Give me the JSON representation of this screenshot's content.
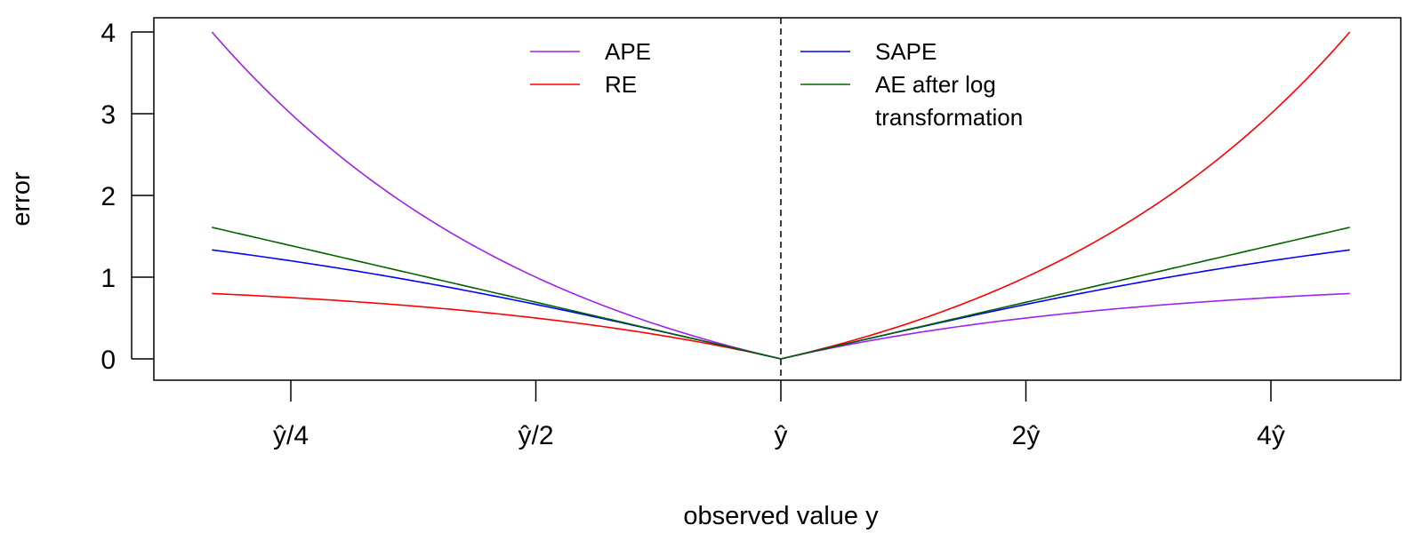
{
  "chart_data": {
    "type": "line",
    "xlabel": "observed value y",
    "ylabel": "error",
    "x_scale": "log2",
    "x_ticks": [
      {
        "ratio": 0.25,
        "label": "ŷ/4"
      },
      {
        "ratio": 0.5,
        "label": "ŷ/2"
      },
      {
        "ratio": 1,
        "label": "ŷ"
      },
      {
        "ratio": 2,
        "label": "2ŷ"
      },
      {
        "ratio": 4,
        "label": "4ŷ"
      }
    ],
    "x_unit": "y / ŷ",
    "xlim": [
      0.2,
      5
    ],
    "ylim": [
      0,
      4
    ],
    "y_ticks": [
      0,
      1,
      2,
      3,
      4
    ],
    "grid": false,
    "reference_line": {
      "x_ratio": 1,
      "style": "dashed",
      "color": "#000000"
    },
    "x": [
      0.2,
      0.25,
      0.333,
      0.5,
      0.667,
      0.8,
      1,
      1.25,
      1.5,
      2,
      3,
      4,
      5
    ],
    "series": [
      {
        "name": "APE",
        "color": "#a020f0",
        "values": [
          4.0,
          3.0,
          2.0,
          1.0,
          0.5,
          0.25,
          0,
          0.2,
          0.333,
          0.5,
          0.667,
          0.75,
          0.8
        ]
      },
      {
        "name": "RE",
        "color": "#ff0000",
        "values": [
          0.8,
          0.75,
          0.667,
          0.5,
          0.333,
          0.2,
          0,
          0.25,
          0.5,
          1.0,
          2.0,
          3.0,
          4.0
        ]
      },
      {
        "name": "SAPE",
        "color": "#0000ff",
        "values": [
          1.333,
          1.2,
          1.0,
          0.667,
          0.4,
          0.222,
          0,
          0.222,
          0.4,
          0.667,
          1.0,
          1.2,
          1.333
        ]
      },
      {
        "name": "AE after log transformation",
        "color": "#006400",
        "values": [
          1.609,
          1.386,
          1.099,
          0.693,
          0.405,
          0.223,
          0,
          0.223,
          0.405,
          0.693,
          1.099,
          1.386,
          1.609
        ]
      }
    ],
    "legend": {
      "placement": "top-center",
      "entries": [
        {
          "lines": [
            "APE"
          ],
          "color": "#a020f0"
        },
        {
          "lines": [
            "RE"
          ],
          "color": "#ff0000"
        },
        {
          "lines": [
            "SAPE"
          ],
          "color": "#0000ff"
        },
        {
          "lines": [
            "AE after log",
            "transformation"
          ],
          "color": "#006400"
        }
      ]
    }
  }
}
